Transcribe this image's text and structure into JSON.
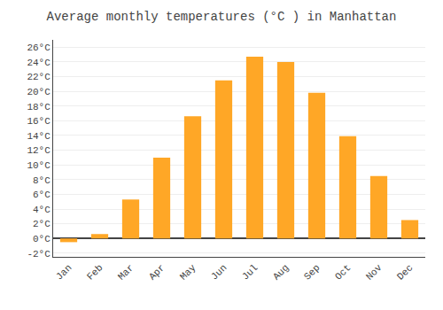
{
  "chart_data": {
    "type": "bar",
    "title": "Average monthly temperatures (°C ) in Manhattan",
    "categories": [
      "Jan",
      "Feb",
      "Mar",
      "Apr",
      "May",
      "Jun",
      "Jul",
      "Aug",
      "Sep",
      "Oct",
      "Nov",
      "Dec"
    ],
    "values": [
      -0.5,
      0.6,
      5.3,
      11.0,
      16.6,
      21.5,
      24.7,
      24.0,
      19.8,
      13.9,
      8.5,
      2.5
    ],
    "color": "#FFA726",
    "ylim": [
      -2.5,
      27
    ],
    "yticks": [
      {
        "value": -2,
        "label": "-2°C"
      },
      {
        "value": 0,
        "label": "0°C"
      },
      {
        "value": 2,
        "label": "2°C"
      },
      {
        "value": 4,
        "label": "4°C"
      },
      {
        "value": 6,
        "label": "6°C"
      },
      {
        "value": 8,
        "label": "8°C"
      },
      {
        "value": 10,
        "label": "10°C"
      },
      {
        "value": 12,
        "label": "12°C"
      },
      {
        "value": 14,
        "label": "14°C"
      },
      {
        "value": 16,
        "label": "16°C"
      },
      {
        "value": 18,
        "label": "18°C"
      },
      {
        "value": 20,
        "label": "20°C"
      },
      {
        "value": 22,
        "label": "22°C"
      },
      {
        "value": 24,
        "label": "24°C"
      },
      {
        "value": 26,
        "label": "26°C"
      }
    ],
    "grid": true
  }
}
